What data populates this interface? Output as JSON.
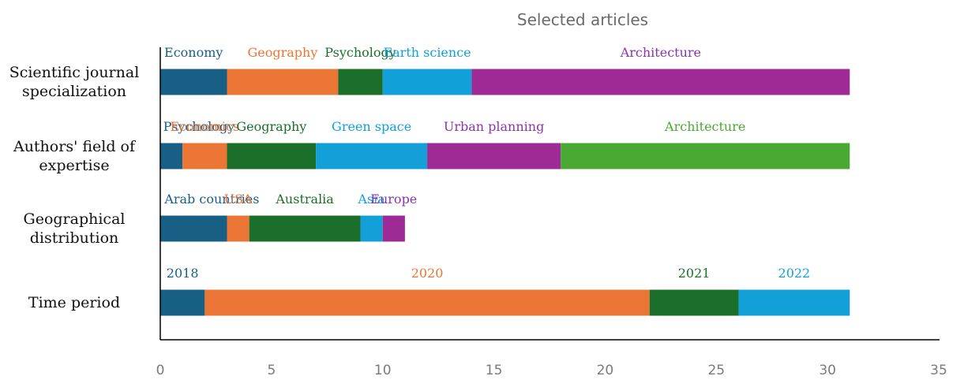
{
  "chart_data": {
    "type": "bar",
    "orientation": "horizontal",
    "stacked": true,
    "title": "Selected articles",
    "xlim": [
      0,
      35
    ],
    "xticks": [
      0,
      5,
      10,
      15,
      20,
      25,
      30,
      35
    ],
    "grid": false,
    "legend": "none",
    "colors": [
      "#185f86",
      "#ea7535",
      "#1c6e2b",
      "#13a0d8",
      "#9e2b95",
      "#4aa934"
    ],
    "label_colors": [
      "#185f86",
      "#ea7535",
      "#1c6e2b",
      "#13a0d8",
      "#8b35a8",
      "#4aa934"
    ],
    "categories": [
      {
        "label_lines": [
          "Scientific journal",
          "specialization"
        ],
        "segments": [
          {
            "name": "Economy",
            "value": 3
          },
          {
            "name": "Geography",
            "value": 5
          },
          {
            "name": "Psychology",
            "value": 2
          },
          {
            "name": "Earth science",
            "value": 4
          },
          {
            "name": "Architecture",
            "value": 17
          }
        ]
      },
      {
        "label_lines": [
          "Authors' field of",
          "expertise"
        ],
        "segments": [
          {
            "name": "Psychology",
            "value": 1
          },
          {
            "name": "Economics",
            "value": 2
          },
          {
            "name": "Geography",
            "value": 4
          },
          {
            "name": "Green space",
            "value": 5
          },
          {
            "name": "Urban planning",
            "value": 6
          },
          {
            "name": "Architecture",
            "value": 13
          }
        ]
      },
      {
        "label_lines": [
          "Geographical",
          "distribution"
        ],
        "segments": [
          {
            "name": "Arab countries",
            "value": 3
          },
          {
            "name": "USA",
            "value": 1
          },
          {
            "name": "Australia",
            "value": 5
          },
          {
            "name": "Asia",
            "value": 1
          },
          {
            "name": "Europe",
            "value": 1
          }
        ]
      },
      {
        "label_lines": [
          "Time period"
        ],
        "segments": [
          {
            "name": "2018",
            "value": 2
          },
          {
            "name": "2020",
            "value": 20
          },
          {
            "name": "2021",
            "value": 4
          },
          {
            "name": "2022",
            "value": 5
          }
        ]
      }
    ]
  }
}
